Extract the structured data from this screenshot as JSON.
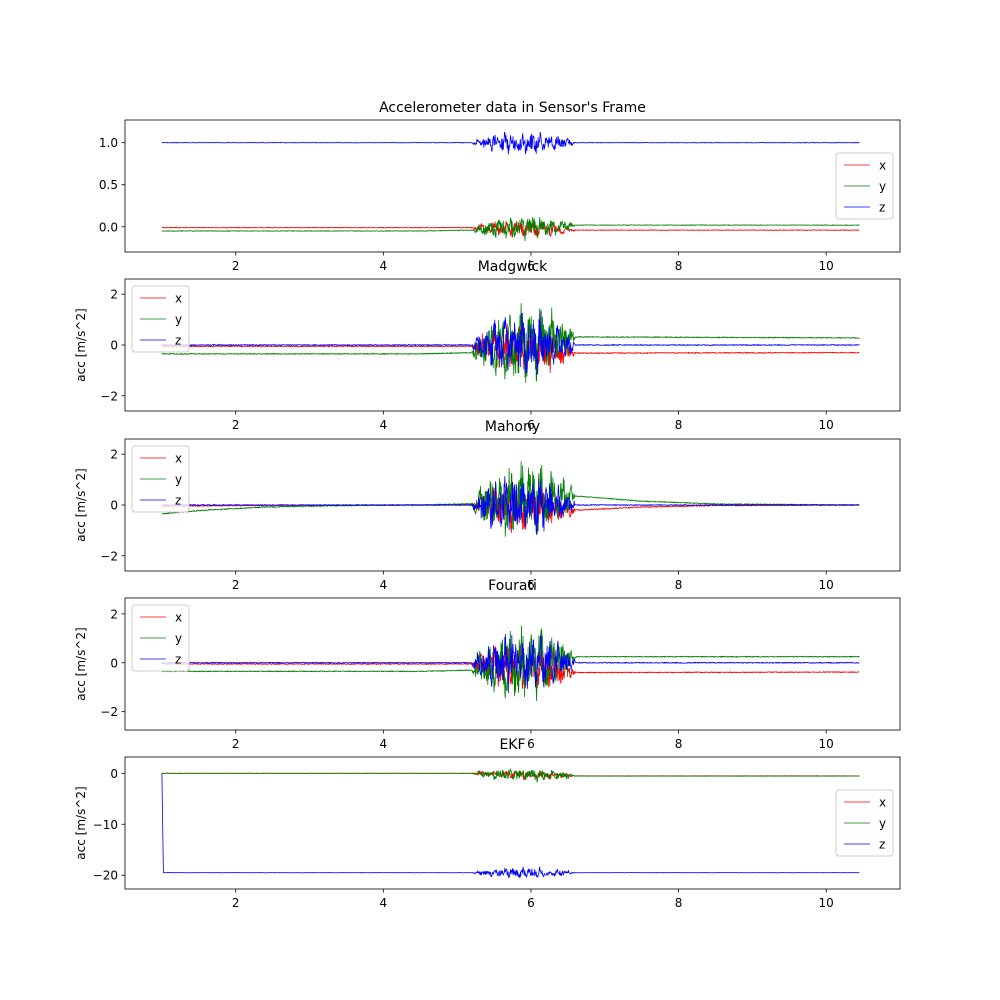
{
  "figure": {
    "background": "#ffffff"
  },
  "colors": {
    "x": "#ff0000",
    "y": "#008000",
    "z": "#0000ff"
  },
  "chart_data": [
    {
      "type": "line",
      "title": "Accelerometer data in Sensor's Frame",
      "xlabel": "",
      "ylabel": "",
      "xlim": [
        0.5,
        11.0
      ],
      "ylim": [
        -0.3,
        1.27
      ],
      "xticks": [
        2,
        4,
        6,
        8,
        10
      ],
      "yticks": [
        0.0,
        0.5,
        1.0
      ],
      "ytick_labels": [
        "0.0",
        "0.5",
        "1.0"
      ],
      "legend": "right",
      "grid": false,
      "active_window": [
        5.2,
        6.6
      ],
      "series": [
        {
          "name": "x",
          "color": "#ff0000",
          "x": [
            1.0,
            4.5,
            5.2,
            6.65,
            10.45
          ],
          "y": [
            -0.01,
            -0.01,
            -0.01,
            -0.04,
            -0.04
          ],
          "noise": 0.004,
          "burst": 0.09
        },
        {
          "name": "y",
          "color": "#008000",
          "x": [
            1.0,
            4.5,
            5.2,
            6.65,
            10.45
          ],
          "y": [
            -0.05,
            -0.05,
            -0.04,
            0.02,
            0.02
          ],
          "noise": 0.004,
          "burst": 0.13
        },
        {
          "name": "z",
          "color": "#0000ff",
          "x": [
            1.0,
            4.5,
            5.2,
            6.65,
            10.45
          ],
          "y": [
            1.0,
            1.0,
            1.0,
            1.0,
            1.0
          ],
          "noise": 0.003,
          "burst": 0.12
        }
      ]
    },
    {
      "type": "line",
      "title": "Madgwick",
      "xlabel": "",
      "ylabel": "acc [m/s^2]",
      "xlim": [
        0.5,
        11.0
      ],
      "ylim": [
        -2.6,
        2.6
      ],
      "xticks": [
        2,
        4,
        6,
        8,
        10
      ],
      "yticks": [
        -2,
        0,
        2
      ],
      "ytick_labels": [
        "−2",
        "0",
        "2"
      ],
      "legend": "upper left",
      "grid": false,
      "active_window": [
        5.2,
        6.6
      ],
      "series": [
        {
          "name": "x",
          "color": "#ff0000",
          "x": [
            1.0,
            4.5,
            5.2,
            6.65,
            10.45
          ],
          "y": [
            -0.05,
            -0.05,
            -0.05,
            -0.32,
            -0.3
          ],
          "noise": 0.02,
          "burst": 0.9
        },
        {
          "name": "y",
          "color": "#008000",
          "x": [
            1.0,
            4.5,
            5.2,
            6.65,
            10.45
          ],
          "y": [
            -0.35,
            -0.35,
            -0.3,
            0.32,
            0.28
          ],
          "noise": 0.02,
          "burst": 1.4
        },
        {
          "name": "z",
          "color": "#0000ff",
          "x": [
            1.0,
            4.5,
            5.2,
            6.65,
            10.45
          ],
          "y": [
            0.0,
            0.0,
            0.0,
            0.0,
            0.0
          ],
          "noise": 0.02,
          "burst": 1.1
        }
      ]
    },
    {
      "type": "line",
      "title": "Mahony",
      "xlabel": "",
      "ylabel": "acc [m/s^2]",
      "xlim": [
        0.5,
        11.0
      ],
      "ylim": [
        -2.6,
        2.6
      ],
      "xticks": [
        2,
        4,
        6,
        8,
        10
      ],
      "yticks": [
        -2,
        0,
        2
      ],
      "ytick_labels": [
        "−2",
        "0",
        "2"
      ],
      "legend": "upper left",
      "grid": false,
      "active_window": [
        5.2,
        6.6
      ],
      "series": [
        {
          "name": "x",
          "color": "#ff0000",
          "x": [
            1.0,
            2.0,
            4.5,
            5.2,
            6.65,
            7.5,
            8.5,
            10.45
          ],
          "y": [
            -0.05,
            -0.02,
            0.0,
            0.0,
            -0.2,
            -0.08,
            -0.02,
            0.0
          ],
          "noise": 0.02,
          "burst": 0.9
        },
        {
          "name": "y",
          "color": "#008000",
          "x": [
            1.0,
            1.6,
            2.4,
            3.5,
            4.5,
            5.2,
            6.65,
            7.5,
            8.5,
            10.45
          ],
          "y": [
            -0.35,
            -0.2,
            -0.08,
            -0.02,
            0.0,
            0.05,
            0.35,
            0.15,
            0.04,
            0.0
          ],
          "noise": 0.02,
          "burst": 1.4
        },
        {
          "name": "z",
          "color": "#0000ff",
          "x": [
            1.0,
            4.5,
            5.2,
            6.65,
            10.45
          ],
          "y": [
            0.0,
            0.0,
            0.0,
            0.0,
            0.0
          ],
          "noise": 0.02,
          "burst": 1.1
        }
      ]
    },
    {
      "type": "line",
      "title": "Fourati",
      "xlabel": "",
      "ylabel": "acc [m/s^2]",
      "xlim": [
        0.5,
        11.0
      ],
      "ylim": [
        -2.75,
        2.65
      ],
      "xticks": [
        2,
        4,
        6,
        8,
        10
      ],
      "yticks": [
        -2,
        0,
        2
      ],
      "ytick_labels": [
        "−2",
        "0",
        "2"
      ],
      "legend": "upper left",
      "grid": false,
      "active_window": [
        5.2,
        6.6
      ],
      "series": [
        {
          "name": "x",
          "color": "#ff0000",
          "x": [
            1.0,
            4.5,
            5.2,
            6.65,
            10.45
          ],
          "y": [
            -0.05,
            -0.05,
            -0.05,
            -0.4,
            -0.38
          ],
          "noise": 0.02,
          "burst": 0.9
        },
        {
          "name": "y",
          "color": "#008000",
          "x": [
            1.0,
            4.5,
            5.2,
            6.65,
            10.45
          ],
          "y": [
            -0.35,
            -0.35,
            -0.3,
            0.25,
            0.25
          ],
          "noise": 0.02,
          "burst": 1.4
        },
        {
          "name": "z",
          "color": "#0000ff",
          "x": [
            1.0,
            4.5,
            5.2,
            6.65,
            10.45
          ],
          "y": [
            0.0,
            0.0,
            0.0,
            0.0,
            0.0
          ],
          "noise": 0.02,
          "burst": 1.1
        }
      ]
    },
    {
      "type": "line",
      "title": "EKF",
      "xlabel": "",
      "ylabel": "acc [m/s^2]",
      "xlim": [
        0.5,
        11.0
      ],
      "ylim": [
        -22.7,
        3.2
      ],
      "xticks": [
        2,
        4,
        6,
        8,
        10
      ],
      "yticks": [
        -20,
        -10,
        0
      ],
      "ytick_labels": [
        "−20",
        "−10",
        "0"
      ],
      "legend": "right",
      "grid": false,
      "active_window": [
        5.2,
        6.6
      ],
      "series": [
        {
          "name": "x",
          "color": "#ff0000",
          "x": [
            1.0,
            4.5,
            5.2,
            6.65,
            10.45
          ],
          "y": [
            0.0,
            0.0,
            0.0,
            -0.5,
            -0.5
          ],
          "noise": 0.03,
          "burst": 0.8
        },
        {
          "name": "y",
          "color": "#008000",
          "x": [
            1.0,
            4.5,
            5.2,
            6.65,
            10.45
          ],
          "y": [
            0.0,
            0.0,
            0.0,
            -0.55,
            -0.55
          ],
          "noise": 0.03,
          "burst": 1.2
        },
        {
          "name": "z",
          "color": "#0000ff",
          "x": [
            1.0,
            1.02,
            4.5,
            5.2,
            6.65,
            10.45
          ],
          "y": [
            0.0,
            -19.5,
            -19.5,
            -19.5,
            -19.5,
            -19.5
          ],
          "noise": 0.03,
          "burst": 1.0
        }
      ]
    }
  ]
}
